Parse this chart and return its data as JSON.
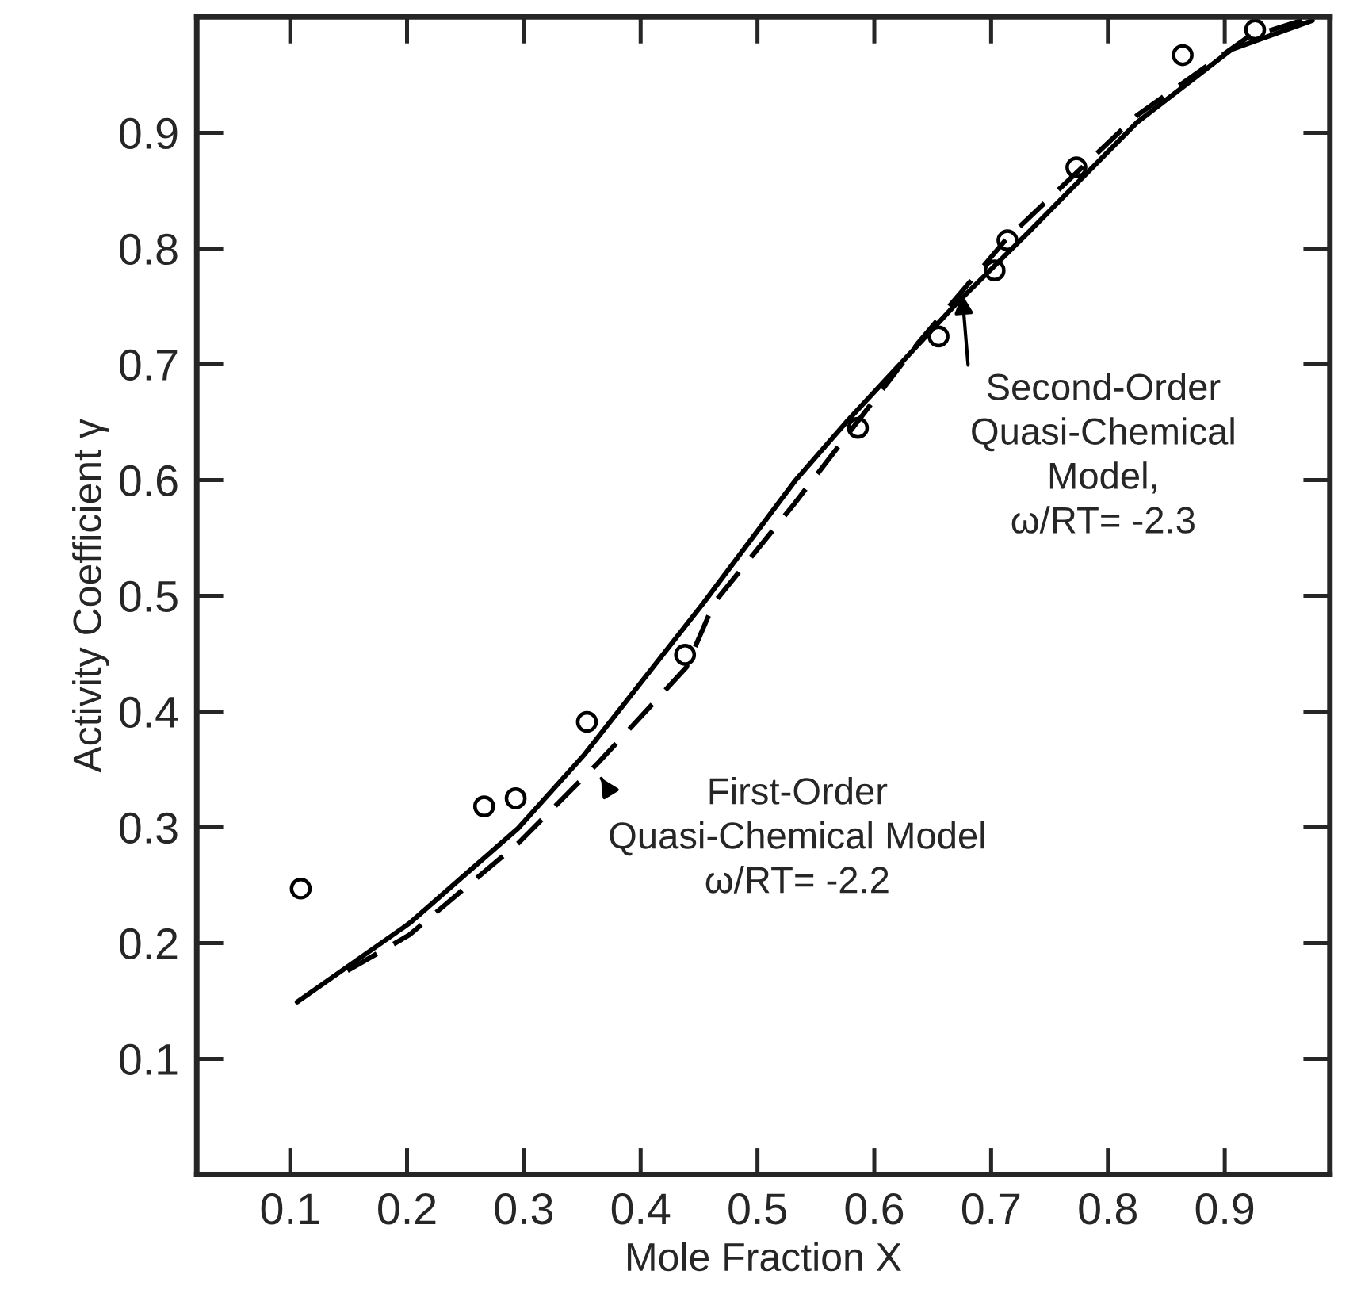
{
  "chart_data": {
    "type": "line",
    "xlabel": "Mole Fraction X",
    "ylabel": "Activity Coefficient γ",
    "xlim": [
      0.02,
      0.99
    ],
    "ylim": [
      0,
      1.0
    ],
    "xticks": [
      0.1,
      0.2,
      0.3,
      0.4,
      0.5,
      0.6,
      0.7,
      0.8,
      0.9
    ],
    "yticks": [
      0.1,
      0.2,
      0.3,
      0.4,
      0.5,
      0.6,
      0.7,
      0.8,
      0.9
    ],
    "grid": false,
    "legend": false,
    "series": [
      {
        "type": "scatter",
        "marker": "circle",
        "color": "#000000",
        "x": [
          0.109,
          0.266,
          0.293,
          0.354,
          0.438,
          0.586,
          0.655,
          0.703,
          0.714,
          0.773,
          0.864,
          0.926
        ],
        "values": [
          0.247,
          0.318,
          0.325,
          0.391,
          0.449,
          0.645,
          0.724,
          0.781,
          0.807,
          0.87,
          0.967,
          0.989
        ]
      },
      {
        "line_style": "solid",
        "color": "#000000",
        "x": [
          0.106,
          0.202,
          0.295,
          0.352,
          0.454,
          0.532,
          0.576,
          0.669,
          0.732,
          0.825,
          0.906,
          0.975
        ],
        "values": [
          0.149,
          0.217,
          0.299,
          0.363,
          0.494,
          0.599,
          0.65,
          0.751,
          0.814,
          0.909,
          0.972,
          0.997
        ]
      },
      {
        "line_style": "dashed",
        "color": "#000000",
        "x": [
          0.149,
          0.202,
          0.295,
          0.364,
          0.439,
          0.463,
          0.532,
          0.638,
          0.713,
          0.825,
          0.919,
          0.975
        ],
        "values": [
          0.176,
          0.207,
          0.286,
          0.356,
          0.438,
          0.494,
          0.58,
          0.719,
          0.808,
          0.915,
          0.982,
          1.0
        ]
      }
    ],
    "annotations": [
      {
        "text": "Second-Order\nQuasi-Chemical\nModel,\nω/RT= -2.3",
        "x": 0.675,
        "y": 0.764
      },
      {
        "text": "First-Order\nQuasi-Chemical Model\nω/RT= -2.2",
        "x": 0.364,
        "y": 0.346
      }
    ]
  }
}
